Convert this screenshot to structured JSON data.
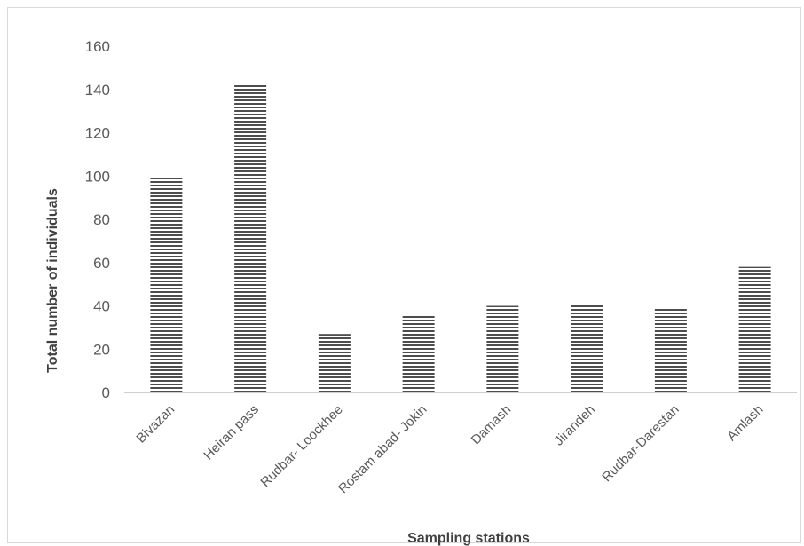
{
  "chart_data": {
    "type": "bar",
    "title": "",
    "xlabel": "Sampling stations",
    "ylabel": "Total number of individuals",
    "categories": [
      "Bivazan",
      "Heiran pass",
      "Rudbar- Loockhee",
      "Rostam abad- Jokin",
      "Damash",
      "Jirandeh",
      "Rudbar-Darestan",
      "Amlash"
    ],
    "values": [
      100,
      142,
      27,
      36,
      40,
      41,
      39,
      58
    ],
    "ylim": [
      0,
      160
    ],
    "yticks": [
      0,
      20,
      40,
      60,
      80,
      100,
      120,
      140,
      160
    ],
    "grid": false,
    "legend": "none",
    "bar_fill": "horizontal-stripes",
    "colors": {
      "bar_dark": "#4d4d4d",
      "bar_light": "#ffffff",
      "axis": "#bfbfbf",
      "text": "#595959"
    }
  }
}
